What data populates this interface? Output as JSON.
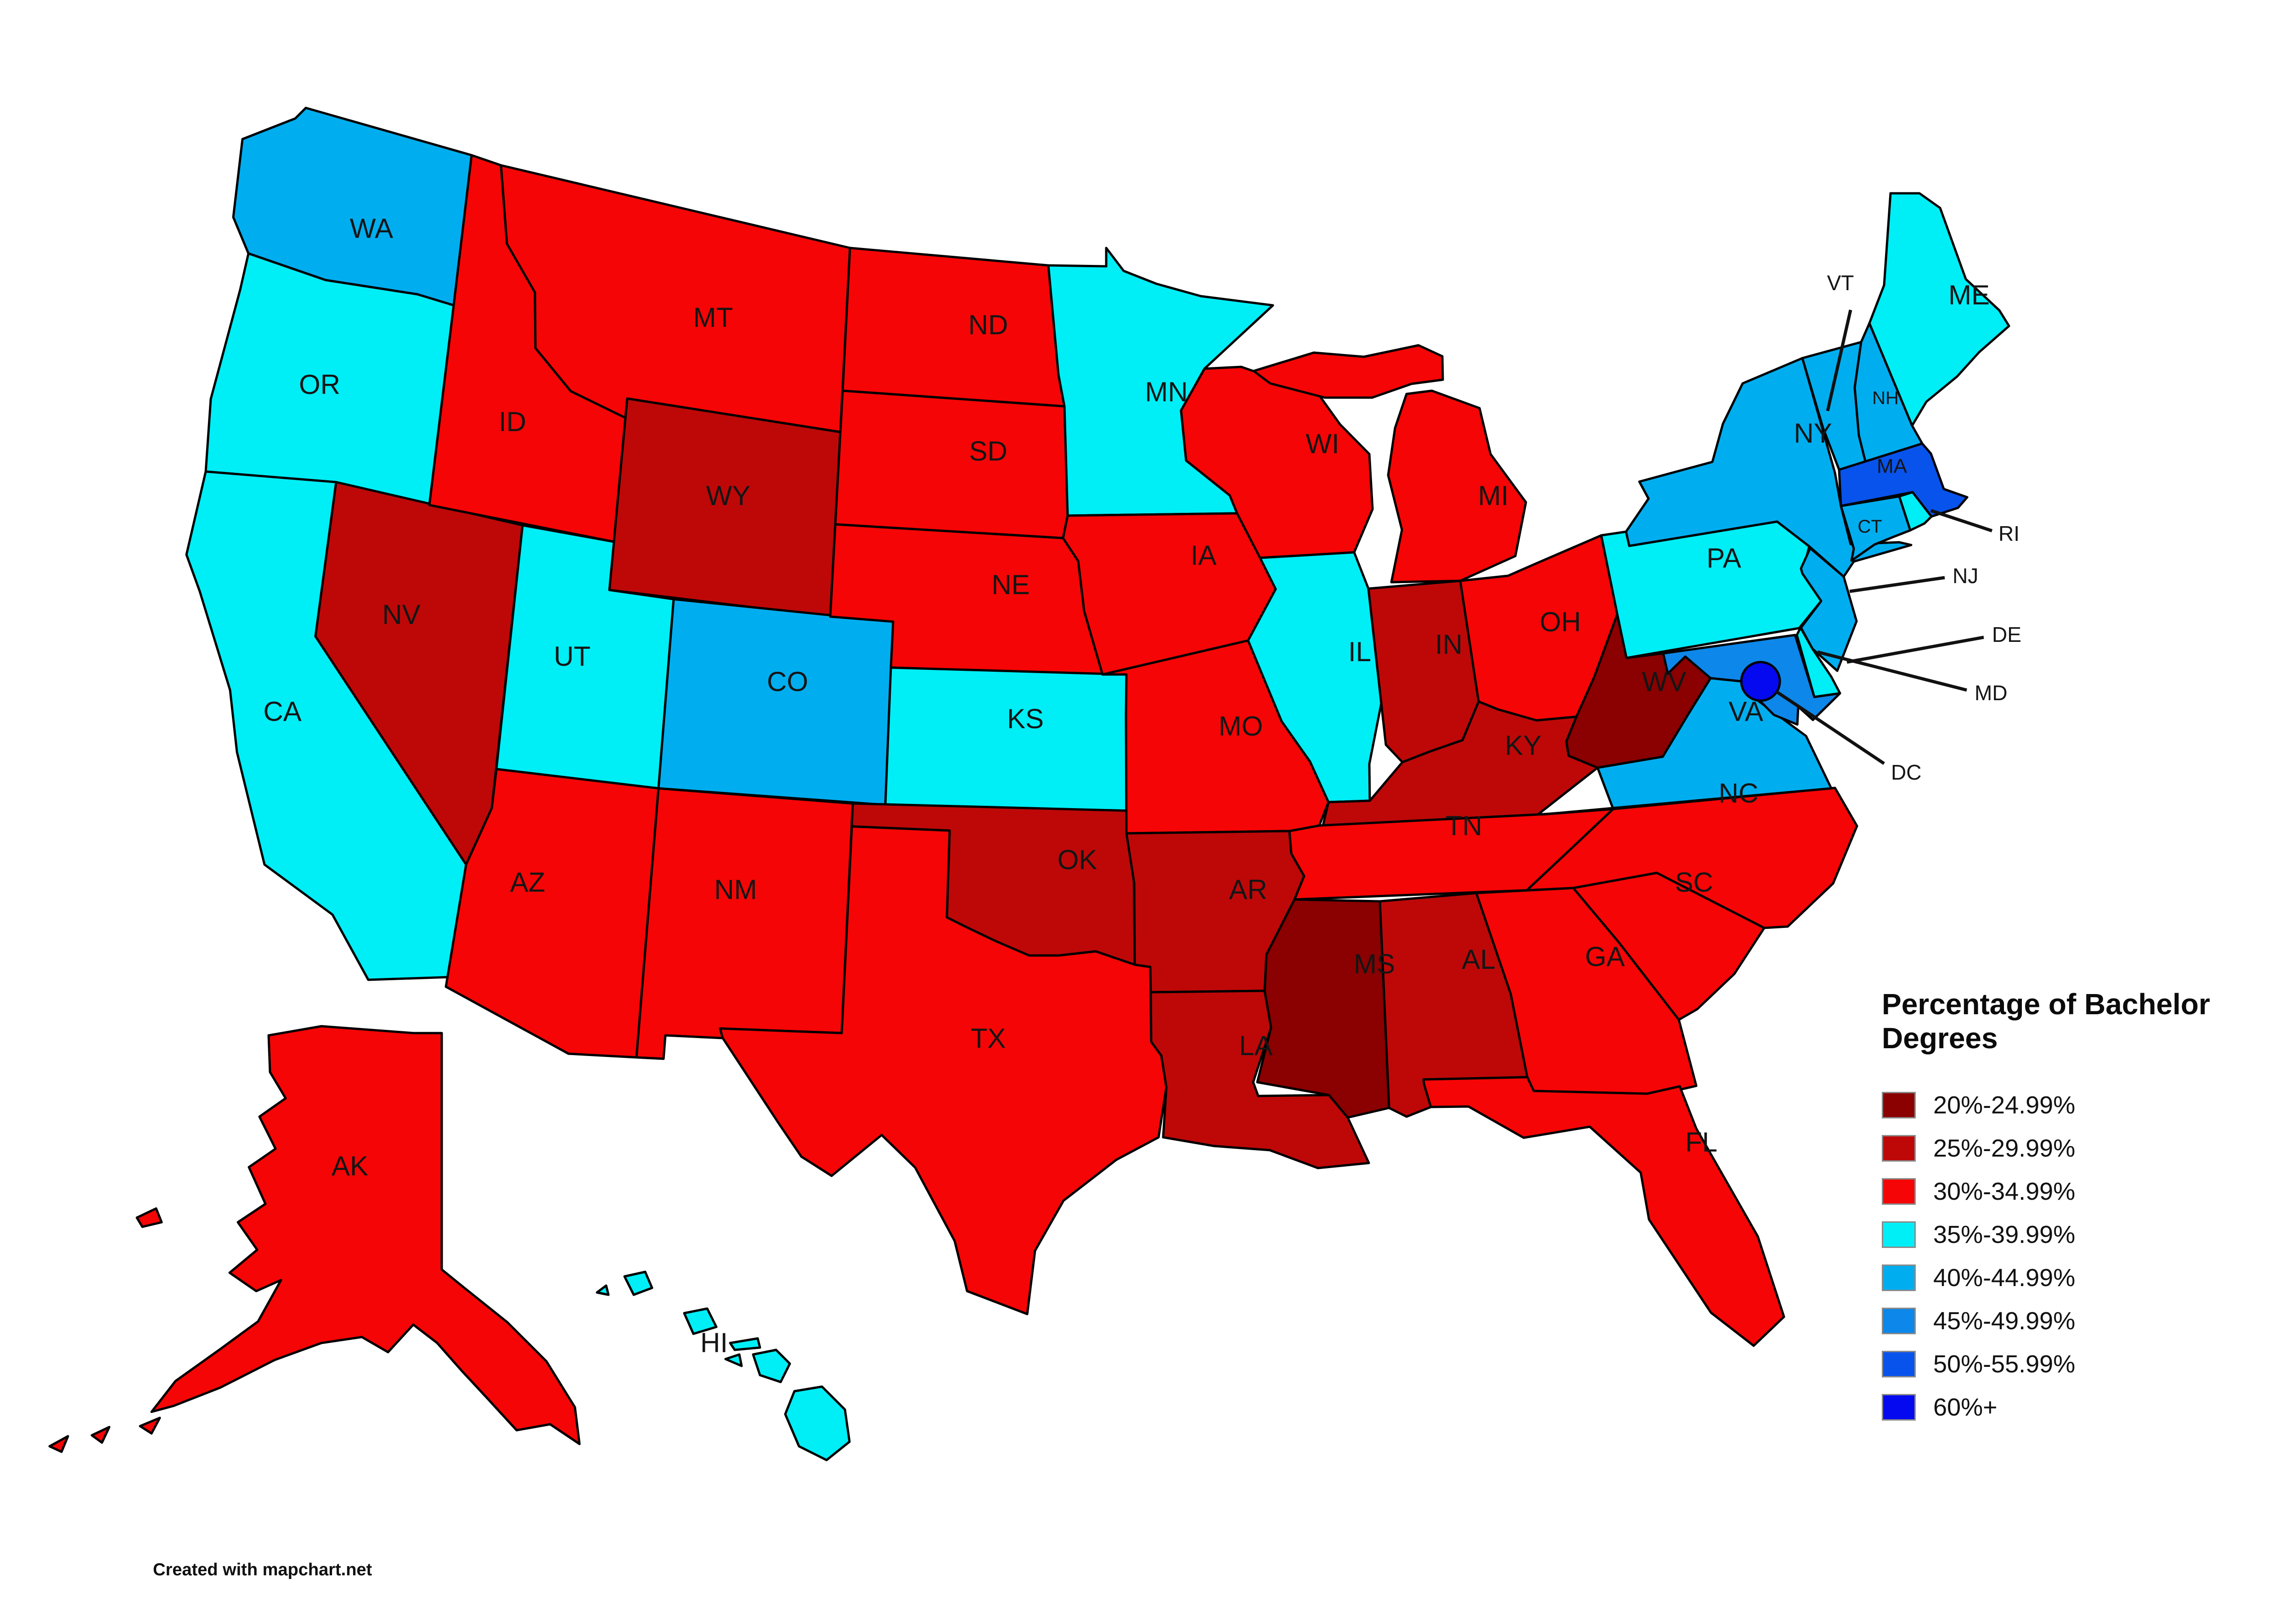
{
  "legend": {
    "title": "Percentage of Bachelor Degrees",
    "categories": [
      {
        "id": "c1",
        "label": "20%-24.99%",
        "color": "#8B0000"
      },
      {
        "id": "c2",
        "label": "25%-29.99%",
        "color": "#BE0808"
      },
      {
        "id": "c3",
        "label": "30%-34.99%",
        "color": "#F50505"
      },
      {
        "id": "c4",
        "label": "35%-39.99%",
        "color": "#00EEF6"
      },
      {
        "id": "c5",
        "label": "40%-44.99%",
        "color": "#00AEF0"
      },
      {
        "id": "c6",
        "label": "45%-49.99%",
        "color": "#0D87E9"
      },
      {
        "id": "c7",
        "label": "50%-55.99%",
        "color": "#0853EB"
      },
      {
        "id": "c8",
        "label": "60%+",
        "color": "#0509F0"
      }
    ]
  },
  "footer": {
    "credit": "Created with mapchart.net"
  },
  "map": {
    "states": [
      {
        "id": "wa",
        "label": "WA",
        "category": "c5"
      },
      {
        "id": "or",
        "label": "OR",
        "category": "c4"
      },
      {
        "id": "ca",
        "label": "CA",
        "category": "c4"
      },
      {
        "id": "nv",
        "label": "NV",
        "category": "c2"
      },
      {
        "id": "id",
        "label": "ID",
        "category": "c3"
      },
      {
        "id": "mt",
        "label": "MT",
        "category": "c3"
      },
      {
        "id": "wy",
        "label": "WY",
        "category": "c2"
      },
      {
        "id": "ut",
        "label": "UT",
        "category": "c4"
      },
      {
        "id": "co",
        "label": "CO",
        "category": "c5"
      },
      {
        "id": "az",
        "label": "AZ",
        "category": "c3"
      },
      {
        "id": "nm",
        "label": "NM",
        "category": "c3"
      },
      {
        "id": "nd",
        "label": "ND",
        "category": "c3"
      },
      {
        "id": "sd",
        "label": "SD",
        "category": "c3"
      },
      {
        "id": "ne",
        "label": "NE",
        "category": "c3"
      },
      {
        "id": "ks",
        "label": "KS",
        "category": "c4"
      },
      {
        "id": "ok",
        "label": "OK",
        "category": "c2"
      },
      {
        "id": "tx",
        "label": "TX",
        "category": "c3"
      },
      {
        "id": "mn",
        "label": "MN",
        "category": "c4"
      },
      {
        "id": "ia",
        "label": "IA",
        "category": "c3"
      },
      {
        "id": "mo",
        "label": "MO",
        "category": "c3"
      },
      {
        "id": "ar",
        "label": "AR",
        "category": "c2"
      },
      {
        "id": "la",
        "label": "LA",
        "category": "c2"
      },
      {
        "id": "wi",
        "label": "WI",
        "category": "c3"
      },
      {
        "id": "il",
        "label": "IL",
        "category": "c4"
      },
      {
        "id": "mi",
        "label": "MI",
        "category": "c3"
      },
      {
        "id": "in",
        "label": "IN",
        "category": "c2"
      },
      {
        "id": "oh",
        "label": "OH",
        "category": "c3"
      },
      {
        "id": "ky",
        "label": "KY",
        "category": "c2"
      },
      {
        "id": "tn",
        "label": "TN",
        "category": "c3"
      },
      {
        "id": "ms",
        "label": "MS",
        "category": "c1"
      },
      {
        "id": "al",
        "label": "AL",
        "category": "c2"
      },
      {
        "id": "ga",
        "label": "GA",
        "category": "c3"
      },
      {
        "id": "sc",
        "label": "SC",
        "category": "c3"
      },
      {
        "id": "nc",
        "label": "NC",
        "category": "c3"
      },
      {
        "id": "va",
        "label": "VA",
        "category": "c5"
      },
      {
        "id": "wv",
        "label": "WV",
        "category": "c1"
      },
      {
        "id": "fl",
        "label": "FL",
        "category": "c3"
      },
      {
        "id": "pa",
        "label": "PA",
        "category": "c4"
      },
      {
        "id": "ny",
        "label": "NY",
        "category": "c5"
      },
      {
        "id": "nj",
        "label": "NJ",
        "category": "c5"
      },
      {
        "id": "de",
        "label": "DE",
        "category": "c4"
      },
      {
        "id": "md",
        "label": "MD",
        "category": "c6"
      },
      {
        "id": "dc",
        "label": "DC",
        "category": "c8"
      },
      {
        "id": "vt",
        "label": "VT",
        "category": "c5"
      },
      {
        "id": "nh",
        "label": "NH",
        "category": "c5"
      },
      {
        "id": "ma",
        "label": "MA",
        "category": "c7"
      },
      {
        "id": "ct",
        "label": "CT",
        "category": "c5"
      },
      {
        "id": "ri",
        "label": "RI",
        "category": "c4"
      },
      {
        "id": "me",
        "label": "ME",
        "category": "c4"
      },
      {
        "id": "ak",
        "label": "AK",
        "category": "c3"
      },
      {
        "id": "hi",
        "label": "HI",
        "category": "c4"
      }
    ]
  }
}
